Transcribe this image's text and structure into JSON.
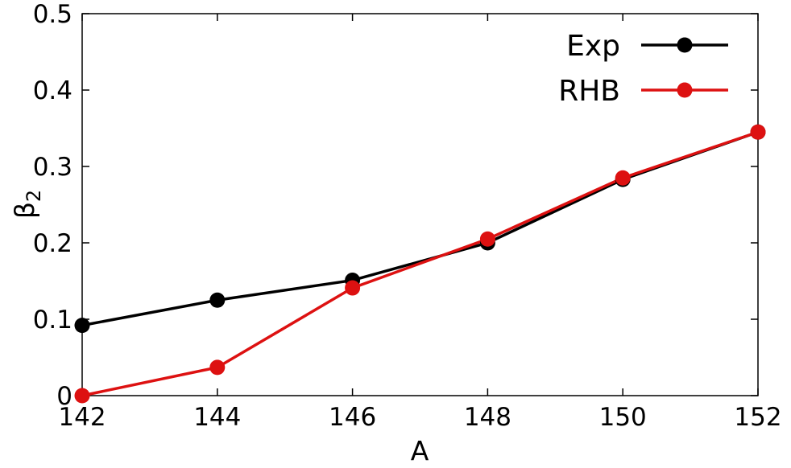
{
  "chart_data": {
    "type": "line",
    "xlabel": "A",
    "ylabel": {
      "base": "β",
      "sub": "2"
    },
    "xlim": [
      142,
      152
    ],
    "ylim": [
      0,
      0.5
    ],
    "xticks": [
      142,
      144,
      146,
      148,
      150,
      152
    ],
    "yticks": [
      0,
      0.1,
      0.2,
      0.3,
      0.4,
      0.5
    ],
    "xtick_labels": [
      "142",
      "144",
      "146",
      "148",
      "150",
      "152"
    ],
    "ytick_labels": [
      "0",
      "0.1",
      "0.2",
      "0.3",
      "0.4",
      "0.5"
    ],
    "grid": false,
    "legend_position": "top-right",
    "series": [
      {
        "name": "Exp",
        "color": "#000000",
        "x": [
          142,
          144,
          146,
          148,
          150,
          152
        ],
        "y": [
          0.092,
          0.125,
          0.151,
          0.2,
          0.283,
          0.345
        ]
      },
      {
        "name": "RHB",
        "color": "#dd1111",
        "x": [
          142,
          144,
          146,
          148,
          150,
          152
        ],
        "y": [
          0.0,
          0.037,
          0.141,
          0.205,
          0.285,
          0.345
        ]
      }
    ]
  }
}
